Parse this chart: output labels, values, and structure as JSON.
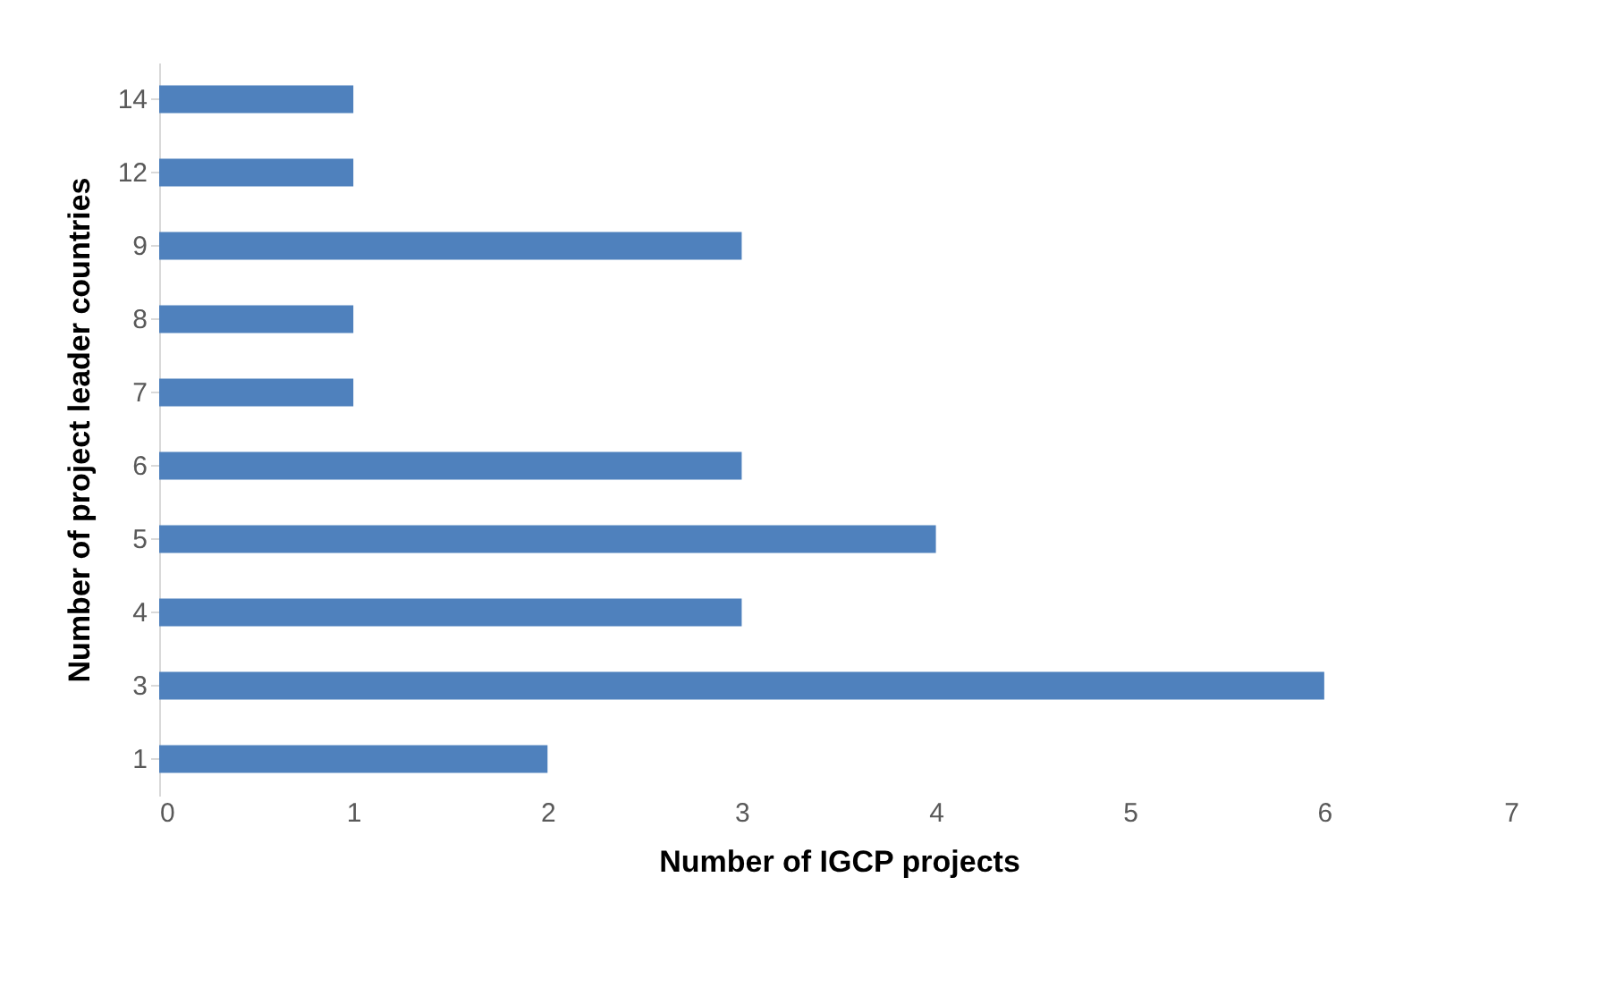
{
  "chart_data": {
    "type": "bar",
    "orientation": "horizontal",
    "xlabel": "Number of  IGCP projects",
    "ylabel": "Number of project leader countries",
    "categories": [
      "14",
      "12",
      "9",
      "8",
      "7",
      "6",
      "5",
      "4",
      "3",
      "1"
    ],
    "values": [
      1,
      1,
      3,
      1,
      1,
      3,
      4,
      3,
      6,
      2
    ],
    "color": "#4f81bd",
    "xlim": [
      0,
      7
    ],
    "xticks": [
      0,
      1,
      2,
      3,
      4,
      5,
      6,
      7
    ],
    "grid": false
  }
}
